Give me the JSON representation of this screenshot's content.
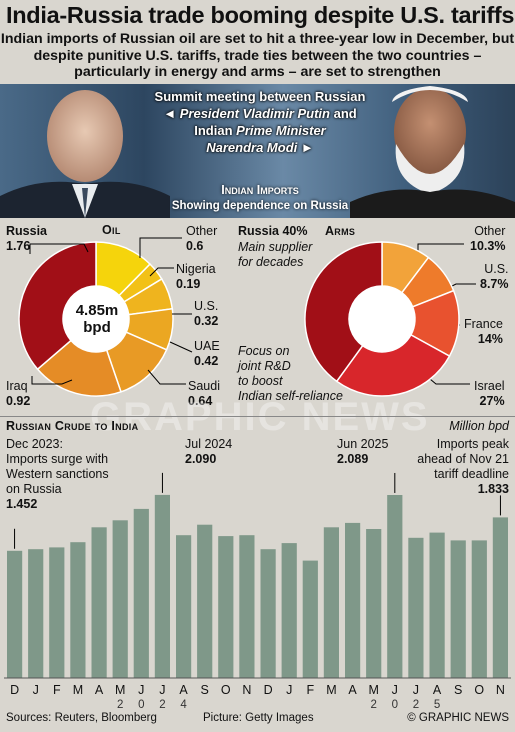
{
  "title": "India-Russia trade booming despite U.S. tariffs",
  "subtitle": "Indian imports of Russian oil are set to hit a three-year low in December, but despite punitive U.S. tariffs, trade ties between the two countries – particularly in energy and arms – are set to strengthen",
  "photo_caption": {
    "line1": "Summit meeting between Russian",
    "line2": "President Vladimir Putin",
    "line2_suffix": "and",
    "line3_prefix": "Indian",
    "line3": "Prime Minister",
    "line4": "Narendra Modi",
    "left_arrow": "◄",
    "right_arrow": "►"
  },
  "indian_imports": {
    "heading": "Indian Imports",
    "subheading": "Showing dependence on Russia"
  },
  "oil_panel": {
    "title": "Oil",
    "center_value": "4.85m",
    "center_unit": "bpd",
    "slices": [
      {
        "label": "Russia",
        "value": 1.76,
        "display": "1.76",
        "color": "#a10f17"
      },
      {
        "label": "Other",
        "value": 0.6,
        "display": "0.6",
        "color": "#f5d40c"
      },
      {
        "label": "Nigeria",
        "value": 0.19,
        "display": "0.19",
        "color": "#f2c117"
      },
      {
        "label": "U.S.",
        "value": 0.32,
        "display": "0.32",
        "color": "#efb41e"
      },
      {
        "label": "UAE",
        "value": 0.42,
        "display": "0.42",
        "color": "#eba722"
      },
      {
        "label": "Saudi",
        "value": 0.64,
        "display": "0.64",
        "color": "#e89a25"
      },
      {
        "label": "Iraq",
        "value": 0.92,
        "display": "0.92",
        "color": "#e58c26"
      }
    ]
  },
  "arms_panel": {
    "title": "Arms",
    "headline": "Russia 40%",
    "note_line1": "Main supplier",
    "note_line2": "for decades",
    "slices": [
      {
        "label": "Russia",
        "value": 40,
        "color": "#a10f17"
      },
      {
        "label": "Other",
        "value": 10.3,
        "display": "10.3%",
        "color": "#f2a33a"
      },
      {
        "label": "U.S.",
        "value": 8.7,
        "display": "8.7%",
        "color": "#ee7b2b"
      },
      {
        "label": "France",
        "value": 14,
        "display": "14%",
        "color": "#e8522f"
      },
      {
        "label": "Israel",
        "value": 27,
        "display": "27%",
        "color": "#d8262b"
      }
    ],
    "focus_note": [
      "Focus on",
      "joint R&D",
      "to boost",
      "Indian self-reliance"
    ]
  },
  "crude_panel": {
    "title": "Russian Crude to India",
    "unit": "Million bpd",
    "annotations": {
      "dec2023_line1": "Dec 2023:",
      "dec2023_line2": "Imports surge with",
      "dec2023_line3": "Western sanctions",
      "dec2023_line4": "on Russia",
      "dec2023_value": "1.452",
      "jul2024_label": "Jul 2024",
      "jul2024_value": "2.090",
      "jun2025_label": "Jun 2025",
      "jun2025_value": "2.089",
      "nov_line1": "Imports peak",
      "nov_line2": "ahead of Nov 21",
      "nov_line3": "tariff deadline",
      "nov_value": "1.833"
    },
    "year_2024": "2024",
    "year_2025": "2025"
  },
  "chart_data": [
    {
      "type": "pie",
      "title": "Oil",
      "center_label": "4.85m bpd",
      "categories": [
        "Russia",
        "Other",
        "Nigeria",
        "U.S.",
        "UAE",
        "Saudi",
        "Iraq"
      ],
      "values": [
        1.76,
        0.6,
        0.19,
        0.32,
        0.42,
        0.64,
        0.92
      ]
    },
    {
      "type": "pie",
      "title": "Arms",
      "categories": [
        "Russia",
        "Other",
        "U.S.",
        "France",
        "Israel"
      ],
      "values": [
        40,
        10.3,
        8.7,
        14,
        27
      ]
    },
    {
      "type": "bar",
      "title": "Russian Crude to India",
      "ylabel": "Million bpd",
      "categories": [
        "D",
        "J",
        "F",
        "M",
        "A",
        "M",
        "J",
        "J",
        "A",
        "S",
        "O",
        "N",
        "D",
        "J",
        "F",
        "M",
        "A",
        "M",
        "J",
        "J",
        "A",
        "S",
        "O",
        "N"
      ],
      "values": [
        1.452,
        1.47,
        1.49,
        1.55,
        1.72,
        1.8,
        1.93,
        2.09,
        1.63,
        1.75,
        1.62,
        1.63,
        1.47,
        1.54,
        1.34,
        1.72,
        1.77,
        1.7,
        2.089,
        1.6,
        1.66,
        1.57,
        1.57,
        1.833
      ],
      "ylim": [
        0,
        2.1
      ]
    }
  ],
  "footer": {
    "sources": "Sources: Reuters, Bloomberg",
    "picture": "Picture: Getty Images",
    "copyright": "© GRAPHIC NEWS"
  }
}
